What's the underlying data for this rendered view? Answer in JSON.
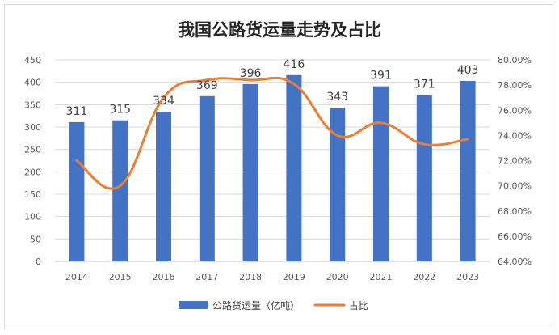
{
  "chart_data": {
    "type": "bar",
    "title": "我国公路货运量走势及占比",
    "categories": [
      "2014",
      "2015",
      "2016",
      "2017",
      "2018",
      "2019",
      "2020",
      "2021",
      "2022",
      "2023"
    ],
    "series": [
      {
        "name": "公路货运量（亿吨）",
        "type": "bar",
        "axis": "left",
        "color": "#4472C4",
        "values": [
          311,
          315,
          334,
          369,
          396,
          416,
          343,
          391,
          371,
          403
        ],
        "data_labels": [
          "311",
          "315",
          "334",
          "369",
          "396",
          "416",
          "343",
          "391",
          "371",
          "403"
        ]
      },
      {
        "name": "占比",
        "type": "line",
        "axis": "right",
        "color": "#ED7D31",
        "smooth": true,
        "values": [
          0.72,
          0.7,
          0.77,
          0.784,
          0.784,
          0.781,
          0.74,
          0.75,
          0.733,
          0.737
        ]
      }
    ],
    "y_left": {
      "lim": [
        0,
        450
      ],
      "ticks": [
        0,
        50,
        100,
        150,
        200,
        250,
        300,
        350,
        400,
        450
      ],
      "tick_labels": [
        "0",
        "50",
        "100",
        "150",
        "200",
        "250",
        "300",
        "350",
        "400",
        "450"
      ]
    },
    "y_right": {
      "lim": [
        0.64,
        0.8
      ],
      "ticks": [
        0.64,
        0.66,
        0.68,
        0.7,
        0.72,
        0.74,
        0.76,
        0.78,
        0.8
      ],
      "tick_labels": [
        "64.00%",
        "66.00%",
        "68.00%",
        "70.00%",
        "72.00%",
        "74.00%",
        "76.00%",
        "78.00%",
        "80.00%"
      ]
    },
    "grid": true,
    "legend_position": "bottom"
  }
}
